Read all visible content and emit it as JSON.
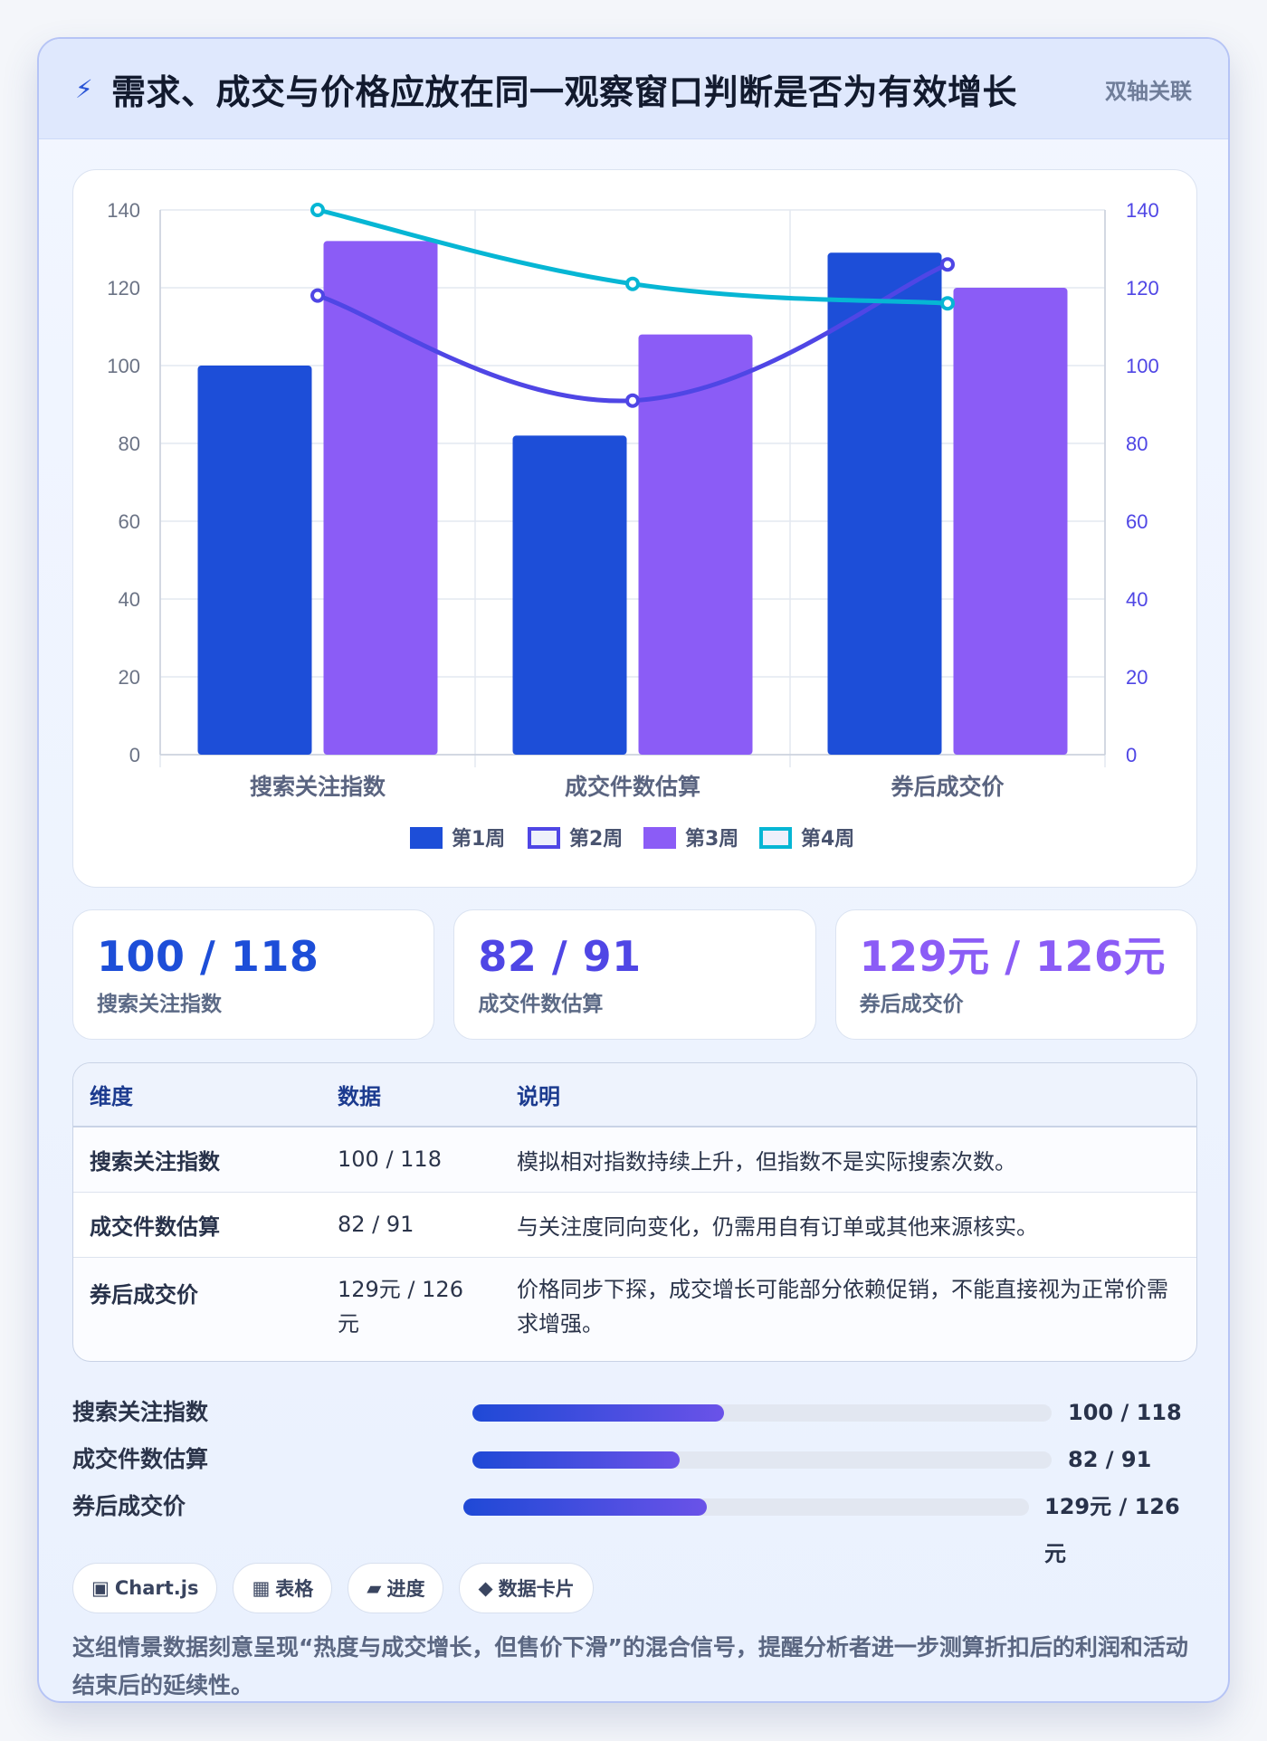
{
  "header": {
    "icon": "bolt-icon",
    "title": "需求、成交与价格应放在同一观察窗口判断是否为有效增长",
    "tag": "双轴关联"
  },
  "chart_data": {
    "type": "bar",
    "categories": [
      "搜索关注指数",
      "成交件数估算",
      "券后成交价"
    ],
    "series": [
      {
        "name": "第1周",
        "type": "bar",
        "axis": "left",
        "color": "#1d4ed8",
        "values": [
          100,
          82,
          129
        ]
      },
      {
        "name": "第2周",
        "type": "line",
        "axis": "right",
        "color": "#4f46e5",
        "values": [
          118,
          91,
          126
        ]
      },
      {
        "name": "第3周",
        "type": "bar",
        "axis": "left",
        "color": "#8b5cf6",
        "values": [
          132,
          108,
          120
        ]
      },
      {
        "name": "第4周",
        "type": "line",
        "axis": "right",
        "color": "#06b6d4",
        "values": [
          140,
          121,
          116
        ]
      }
    ],
    "ylim": [
      0,
      140
    ],
    "y_ticks": [
      0,
      20,
      40,
      60,
      80,
      100,
      120,
      140
    ],
    "y2lim": [
      0,
      140
    ],
    "grid": true,
    "legend": "bottom-center"
  },
  "kpis": [
    {
      "value": "100 / 118",
      "label": "搜索关注指数",
      "color": "#1d4ed8"
    },
    {
      "value": "82 / 91",
      "label": "成交件数估算",
      "color": "#4f46e5"
    },
    {
      "value": "129元 / 126元",
      "label": "券后成交价",
      "color": "#8b5cf6"
    }
  ],
  "table": {
    "headers": [
      "维度",
      "数据",
      "说明"
    ],
    "rows": [
      [
        "搜索关注指数",
        "100 / 118",
        "模拟相对指数持续上升，但指数不是实际搜索次数。"
      ],
      [
        "成交件数估算",
        "82 / 91",
        "与关注度同向变化，仍需用自有订单或其他来源核实。"
      ],
      [
        "券后成交价",
        "129元 / 126元",
        "价格同步下探，成交增长可能部分依赖促销，不能直接视为正常价需求增强。"
      ]
    ]
  },
  "progress": [
    {
      "label": "搜索关注指数",
      "value_text": "100 / 118",
      "fraction": 0.435
    },
    {
      "label": "成交件数估算",
      "value_text": "82 / 91",
      "fraction": 0.358
    },
    {
      "label": "券后成交价",
      "value_text": "129元 / 126元",
      "fraction": 0.43
    }
  ],
  "chips": [
    {
      "icon": "chart-icon",
      "glyph": "▣",
      "label": "Chart.js"
    },
    {
      "icon": "table-icon",
      "glyph": "▦",
      "label": "表格"
    },
    {
      "icon": "progress-icon",
      "glyph": "▰",
      "label": "进度"
    },
    {
      "icon": "card-icon",
      "glyph": "◆",
      "label": "数据卡片"
    }
  ],
  "note": "这组情景数据刻意呈现“热度与成交增长，但售价下滑”的混合信号，提醒分析者进一步测算折扣后的利润和活动结束后的延续性。"
}
